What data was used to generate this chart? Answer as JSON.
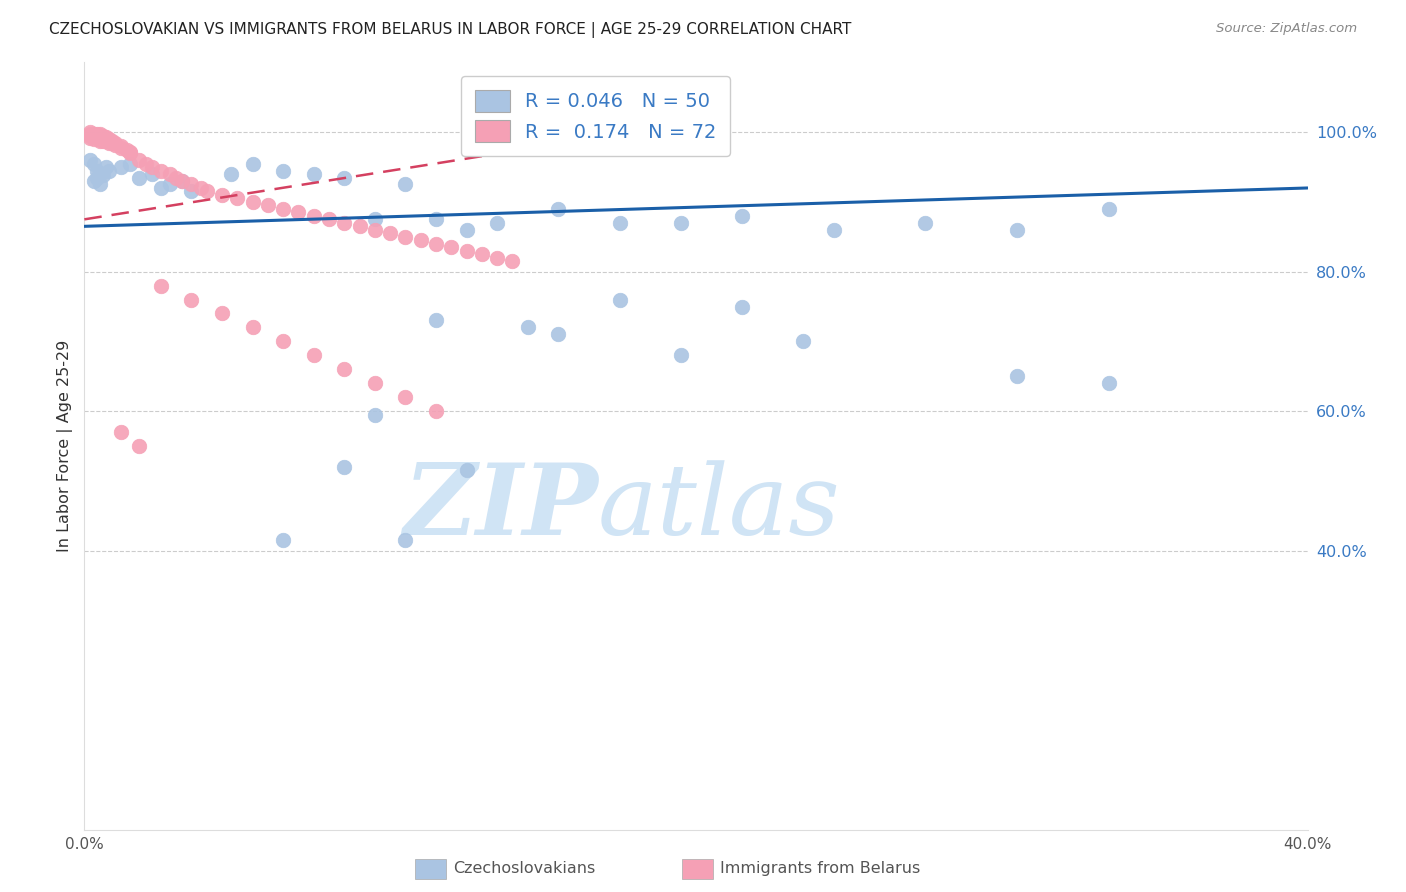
{
  "title": "CZECHOSLOVAKIAN VS IMMIGRANTS FROM BELARUS IN LABOR FORCE | AGE 25-29 CORRELATION CHART",
  "source": "Source: ZipAtlas.com",
  "ylabel": "In Labor Force | Age 25-29",
  "xlim": [
    0.0,
    0.4
  ],
  "ylim": [
    0.0,
    1.1
  ],
  "blue_R": 0.046,
  "blue_N": 50,
  "pink_R": 0.174,
  "pink_N": 72,
  "blue_color": "#aac4e2",
  "pink_color": "#f5a0b5",
  "blue_line_color": "#1a5fa8",
  "pink_line_color": "#d44060",
  "watermark_color": "#d0e4f5",
  "blue_line_x0": 0.0,
  "blue_line_y0": 0.865,
  "blue_line_x1": 0.4,
  "blue_line_y1": 0.92,
  "pink_line_x0": 0.0,
  "pink_line_y0": 0.875,
  "pink_line_x1": 0.165,
  "pink_line_y1": 0.99,
  "blue_x": [
    0.002,
    0.003,
    0.004,
    0.005,
    0.006,
    0.007,
    0.003,
    0.004,
    0.005,
    0.008,
    0.012,
    0.015,
    0.018,
    0.022,
    0.025,
    0.028,
    0.032,
    0.035,
    0.048,
    0.055,
    0.065,
    0.075,
    0.085,
    0.095,
    0.105,
    0.115,
    0.125,
    0.135,
    0.155,
    0.175,
    0.195,
    0.215,
    0.245,
    0.275,
    0.305,
    0.335,
    0.175,
    0.215,
    0.115,
    0.145,
    0.155,
    0.235,
    0.195,
    0.305,
    0.335,
    0.095,
    0.125,
    0.085,
    0.105,
    0.065
  ],
  "blue_y": [
    0.96,
    0.955,
    0.945,
    0.94,
    0.938,
    0.95,
    0.93,
    0.935,
    0.925,
    0.945,
    0.95,
    0.955,
    0.935,
    0.94,
    0.92,
    0.925,
    0.93,
    0.915,
    0.94,
    0.955,
    0.945,
    0.94,
    0.935,
    0.875,
    0.925,
    0.875,
    0.86,
    0.87,
    0.89,
    0.87,
    0.87,
    0.88,
    0.86,
    0.87,
    0.86,
    0.89,
    0.76,
    0.75,
    0.73,
    0.72,
    0.71,
    0.7,
    0.68,
    0.65,
    0.64,
    0.595,
    0.515,
    0.52,
    0.415,
    0.415
  ],
  "pink_x": [
    0.002,
    0.002,
    0.002,
    0.002,
    0.003,
    0.003,
    0.003,
    0.004,
    0.004,
    0.005,
    0.005,
    0.005,
    0.005,
    0.005,
    0.006,
    0.006,
    0.006,
    0.007,
    0.007,
    0.008,
    0.008,
    0.009,
    0.009,
    0.01,
    0.01,
    0.012,
    0.012,
    0.014,
    0.015,
    0.015,
    0.018,
    0.02,
    0.022,
    0.025,
    0.028,
    0.03,
    0.032,
    0.035,
    0.038,
    0.04,
    0.045,
    0.05,
    0.055,
    0.06,
    0.065,
    0.07,
    0.075,
    0.08,
    0.085,
    0.09,
    0.095,
    0.1,
    0.105,
    0.11,
    0.115,
    0.12,
    0.125,
    0.13,
    0.135,
    0.14,
    0.025,
    0.035,
    0.045,
    0.055,
    0.065,
    0.075,
    0.085,
    0.095,
    0.105,
    0.115,
    0.012,
    0.018
  ],
  "pink_y": [
    1.0,
    0.998,
    0.995,
    0.992,
    0.998,
    0.995,
    0.99,
    0.997,
    0.993,
    0.998,
    0.995,
    0.993,
    0.99,
    0.988,
    0.995,
    0.99,
    0.988,
    0.993,
    0.988,
    0.99,
    0.985,
    0.988,
    0.985,
    0.985,
    0.982,
    0.98,
    0.978,
    0.975,
    0.972,
    0.97,
    0.96,
    0.955,
    0.95,
    0.945,
    0.94,
    0.935,
    0.93,
    0.925,
    0.92,
    0.915,
    0.91,
    0.905,
    0.9,
    0.895,
    0.89,
    0.885,
    0.88,
    0.875,
    0.87,
    0.865,
    0.86,
    0.855,
    0.85,
    0.845,
    0.84,
    0.835,
    0.83,
    0.825,
    0.82,
    0.815,
    0.78,
    0.76,
    0.74,
    0.72,
    0.7,
    0.68,
    0.66,
    0.64,
    0.62,
    0.6,
    0.57,
    0.55
  ]
}
